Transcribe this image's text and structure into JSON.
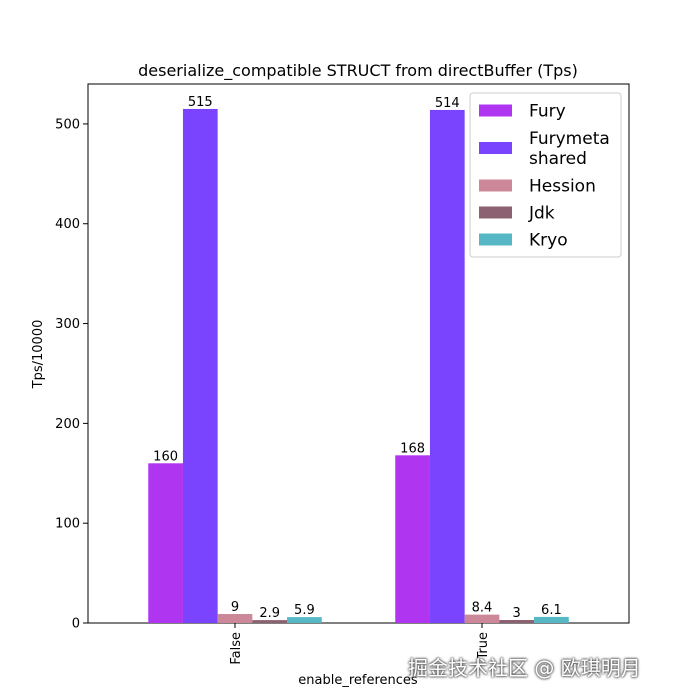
{
  "chart_data": {
    "type": "bar",
    "title": "deserialize_compatible STRUCT from directBuffer (Tps)",
    "xlabel": "enable_references",
    "ylabel": "Tps/10000",
    "ylim": [
      0,
      540
    ],
    "yticks": [
      0,
      100,
      200,
      300,
      400,
      500
    ],
    "categories": [
      "False",
      "True"
    ],
    "series": [
      {
        "name": "Fury",
        "color": "#b035f0",
        "values": [
          160,
          168
        ],
        "labels": [
          "160",
          "168"
        ]
      },
      {
        "name": "Furymeta\nshared",
        "color": "#7a44ff",
        "values": [
          515,
          514
        ],
        "labels": [
          "515",
          "514"
        ]
      },
      {
        "name": "Hession",
        "color": "#cc8899",
        "values": [
          9,
          8.4
        ],
        "labels": [
          "9",
          "8.4"
        ]
      },
      {
        "name": "Jdk",
        "color": "#8c6272",
        "values": [
          2.9,
          3
        ],
        "labels": [
          "2.9",
          "3"
        ]
      },
      {
        "name": "Kryo",
        "color": "#55b8c4",
        "values": [
          5.9,
          6.1
        ],
        "labels": [
          "5.9",
          "6.1"
        ]
      }
    ],
    "legend": "top-right",
    "grid": false
  },
  "watermark": "掘金技术社区 @ 欧琪明月"
}
